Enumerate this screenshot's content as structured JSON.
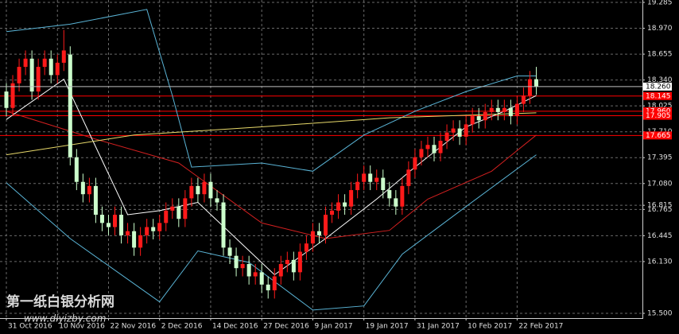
{
  "chart_data": {
    "type": "candlestick",
    "categories": [
      "31 Oct 2016",
      null,
      null,
      null,
      null,
      null,
      null,
      null,
      "10 Nov 2016",
      null,
      null,
      null,
      null,
      null,
      null,
      null,
      "22 Nov 2016",
      null,
      null,
      null,
      null,
      null,
      null,
      null,
      "2 Dec 2016",
      null,
      null,
      null,
      null,
      null,
      null,
      null,
      "14 Dec 2016",
      null,
      null,
      null,
      null,
      null,
      null,
      null,
      "27 Dec 2016",
      null,
      null,
      null,
      null,
      null,
      null,
      null,
      "9 Jan 2017",
      null,
      null,
      null,
      null,
      null,
      null,
      null,
      "19 Jan 2017",
      null,
      null,
      null,
      null,
      null,
      null,
      null,
      "31 Jan 2017",
      null,
      null,
      null,
      null,
      null,
      null,
      null,
      "10 Feb 2017",
      null,
      null,
      null,
      null,
      null,
      null,
      null,
      "22 Feb 2017",
      null,
      null,
      null
    ],
    "open": [
      18.2,
      18.0,
      18.3,
      18.5,
      18.6,
      18.2,
      18.5,
      18.6,
      18.4,
      18.55,
      18.65,
      17.4,
      17.1,
      16.95,
      17.05,
      16.7,
      16.6,
      16.55,
      16.7,
      16.45,
      16.5,
      16.3,
      16.45,
      16.55,
      16.5,
      16.6,
      16.75,
      16.8,
      16.65,
      16.9,
      17.05,
      16.95,
      17.1,
      16.9,
      16.85,
      16.3,
      16.2,
      16.05,
      16.1,
      15.95,
      16.0,
      15.85,
      15.78,
      15.95,
      16.1,
      16.15,
      16.0,
      16.25,
      16.35,
      16.5,
      16.45,
      16.7,
      16.75,
      16.85,
      16.8,
      17.0,
      17.1,
      17.2,
      17.1,
      17.15,
      17.0,
      16.9,
      16.8,
      17.05,
      17.25,
      17.4,
      17.5,
      17.55,
      17.45,
      17.6,
      17.7,
      17.75,
      17.65,
      17.8,
      17.9,
      17.85,
      17.95,
      18.0,
      17.95,
      18.0,
      17.9,
      18.05,
      18.15,
      18.35
    ],
    "high": [
      18.3,
      18.4,
      18.6,
      18.7,
      18.7,
      18.6,
      18.7,
      18.7,
      18.65,
      18.95,
      18.75,
      17.5,
      17.2,
      17.15,
      17.15,
      16.8,
      16.7,
      16.8,
      16.8,
      16.6,
      16.6,
      16.55,
      16.65,
      16.65,
      16.7,
      16.85,
      16.9,
      16.9,
      17.0,
      17.15,
      17.15,
      17.2,
      17.2,
      17.0,
      16.95,
      16.4,
      16.3,
      16.2,
      16.2,
      16.1,
      16.1,
      15.95,
      16.05,
      16.2,
      16.25,
      16.25,
      16.35,
      16.45,
      16.6,
      16.6,
      16.8,
      16.85,
      16.95,
      16.95,
      17.1,
      17.2,
      17.3,
      17.3,
      17.25,
      17.25,
      17.1,
      17.0,
      17.15,
      17.35,
      17.5,
      17.6,
      17.65,
      17.65,
      17.7,
      17.8,
      17.85,
      17.85,
      17.9,
      18.0,
      18.0,
      18.05,
      18.1,
      18.1,
      18.1,
      18.1,
      18.15,
      18.25,
      18.45,
      18.5
    ],
    "low": [
      17.9,
      17.9,
      18.2,
      18.4,
      18.1,
      18.1,
      18.4,
      18.3,
      18.3,
      18.45,
      17.3,
      17.0,
      16.85,
      16.85,
      16.6,
      16.5,
      16.45,
      16.45,
      16.35,
      16.35,
      16.2,
      16.2,
      16.35,
      16.4,
      16.4,
      16.5,
      16.65,
      16.55,
      16.55,
      16.8,
      16.85,
      16.85,
      16.8,
      16.75,
      16.2,
      16.1,
      15.95,
      15.95,
      15.85,
      15.85,
      15.75,
      15.68,
      15.68,
      15.85,
      16.0,
      15.9,
      15.9,
      16.15,
      16.25,
      16.35,
      16.35,
      16.6,
      16.65,
      16.7,
      16.7,
      16.9,
      17.0,
      17.0,
      17.0,
      16.9,
      16.8,
      16.7,
      16.7,
      16.95,
      17.15,
      17.3,
      17.4,
      17.35,
      17.35,
      17.5,
      17.6,
      17.55,
      17.55,
      17.7,
      17.75,
      17.75,
      17.85,
      17.85,
      17.85,
      17.8,
      17.8,
      17.95,
      18.05,
      18.16
    ],
    "close": [
      18.0,
      18.3,
      18.5,
      18.6,
      18.2,
      18.5,
      18.6,
      18.4,
      18.55,
      18.7,
      17.4,
      17.1,
      16.95,
      17.05,
      16.7,
      16.6,
      16.55,
      16.7,
      16.45,
      16.5,
      16.3,
      16.45,
      16.55,
      16.5,
      16.6,
      16.75,
      16.8,
      16.65,
      16.9,
      17.05,
      16.95,
      17.1,
      16.9,
      16.85,
      16.3,
      16.2,
      16.05,
      16.1,
      15.95,
      16.0,
      15.85,
      15.78,
      15.95,
      16.1,
      16.15,
      16.0,
      16.25,
      16.35,
      16.5,
      16.45,
      16.7,
      16.75,
      16.85,
      16.8,
      17.0,
      17.1,
      17.2,
      17.1,
      17.15,
      17.0,
      16.9,
      16.8,
      17.05,
      17.25,
      17.4,
      17.5,
      17.55,
      17.45,
      17.6,
      17.7,
      17.75,
      17.65,
      17.8,
      17.9,
      17.85,
      17.95,
      18.0,
      17.95,
      18.0,
      17.9,
      18.05,
      18.15,
      18.35,
      18.26
    ],
    "up_color": "#ff1a1a",
    "down_color": "#ccffcc",
    "lines": [
      {
        "color": "#5ab4d6",
        "x": [
          0,
          10,
          22,
          26,
          29,
          40,
          48,
          56,
          64,
          72,
          80,
          83
        ],
        "values": [
          18.93,
          19.02,
          19.2,
          18.15,
          17.28,
          17.33,
          17.23,
          17.67,
          17.96,
          18.2,
          18.39,
          18.39
        ]
      },
      {
        "color": "#5ab4d6",
        "x": [
          0,
          10,
          24,
          30,
          38,
          48,
          56,
          62,
          72,
          83
        ],
        "values": [
          17.09,
          16.41,
          15.64,
          16.26,
          16.12,
          15.54,
          15.59,
          16.22,
          16.8,
          17.43
        ]
      },
      {
        "color": "#d42020",
        "x": [
          0,
          14,
          27,
          40,
          50,
          60,
          66,
          76,
          83
        ],
        "values": [
          17.96,
          17.62,
          17.33,
          16.6,
          16.41,
          16.51,
          16.89,
          17.23,
          17.67
        ]
      },
      {
        "color": "#ffffff",
        "x": [
          0,
          9,
          19,
          24,
          30,
          42,
          50,
          58,
          64,
          72,
          78,
          83
        ],
        "values": [
          17.86,
          18.35,
          16.7,
          16.75,
          16.85,
          15.97,
          16.41,
          16.89,
          17.28,
          17.77,
          17.96,
          18.15
        ]
      },
      {
        "color": "#e8d96a",
        "x": [
          0,
          20,
          40,
          60,
          83
        ],
        "values": [
          17.43,
          17.67,
          17.77,
          17.88,
          17.94
        ]
      }
    ],
    "levels": [
      18.145,
      {
        "value": 17.96,
        "label": "17.960"
      },
      17.905,
      17.665
    ],
    "level_color": "#ff0000",
    "last_price": {
      "value": 18.26,
      "label": "18.260"
    },
    "ylim": [
      15.442,
      19.314
    ],
    "yticks": [
      19.285,
      {
        "value": 18.97,
        "label": "18.970"
      },
      18.655,
      {
        "value": 18.34,
        "label": "18.340"
      },
      18.025,
      {
        "value": 17.71,
        "label": "17.710"
      },
      17.395,
      {
        "value": 17.08,
        "label": "17.080"
      },
      16.765,
      16.445,
      {
        "value": 16.13,
        "label": "16.130"
      },
      16.815,
      {
        "value": 15.5,
        "label": "15.500"
      }
    ],
    "grid": true,
    "watermark": [
      "第一纸白银分析网",
      "www.diyizby.com"
    ]
  }
}
